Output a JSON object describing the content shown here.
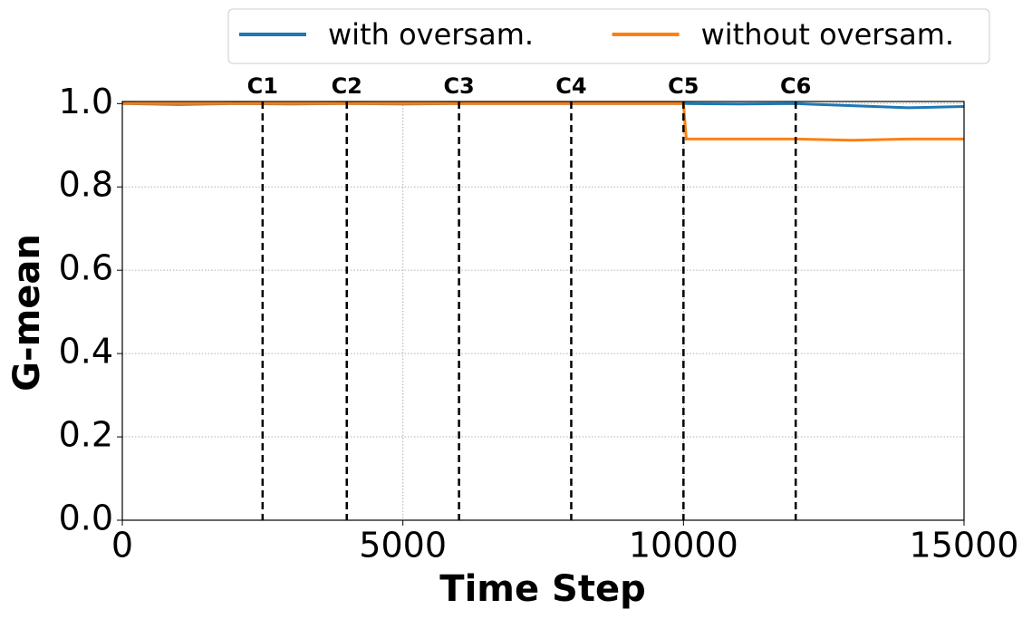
{
  "chart_data": {
    "type": "line",
    "xlabel": "Time Step",
    "ylabel": "G-mean",
    "x": [
      0,
      1000,
      2000,
      3000,
      4000,
      5000,
      6000,
      7000,
      8000,
      9000,
      10000,
      10050,
      11000,
      12000,
      13000,
      14000,
      15000
    ],
    "series": [
      {
        "name": "with oversam.",
        "color": "#1f77b4",
        "values": [
          1,
          0.998,
          1,
          0.999,
          1,
          0.999,
          1,
          1,
          1,
          1,
          1,
          1,
          0.999,
          1,
          0.995,
          0.99,
          0.993
        ]
      },
      {
        "name": "without oversam.",
        "color": "#ff7f0e",
        "values": [
          1,
          1,
          1,
          1,
          1,
          1,
          1,
          1,
          1,
          1,
          1,
          0.915,
          0.915,
          0.915,
          0.912,
          0.915,
          0.915
        ]
      }
    ],
    "vlines": [
      {
        "x": 2500,
        "label": "C1"
      },
      {
        "x": 4000,
        "label": "C2"
      },
      {
        "x": 6000,
        "label": "C3"
      },
      {
        "x": 8000,
        "label": "C4"
      },
      {
        "x": 10000,
        "label": "C5"
      },
      {
        "x": 12000,
        "label": "C6"
      }
    ],
    "xlim": [
      0,
      15000
    ],
    "xticks": [
      0,
      5000,
      10000,
      15000
    ],
    "ylim": [
      0,
      1.005
    ],
    "yticks": [
      {
        "value": 0,
        "label": "0.0"
      },
      {
        "value": 0.2,
        "label": "0.2"
      },
      {
        "value": 0.4,
        "label": "0.4"
      },
      {
        "value": 0.6,
        "label": "0.6"
      },
      {
        "value": 0.8,
        "label": "0.8"
      },
      {
        "value": 1,
        "label": "1.0"
      }
    ],
    "grid": true,
    "legend": "above"
  }
}
